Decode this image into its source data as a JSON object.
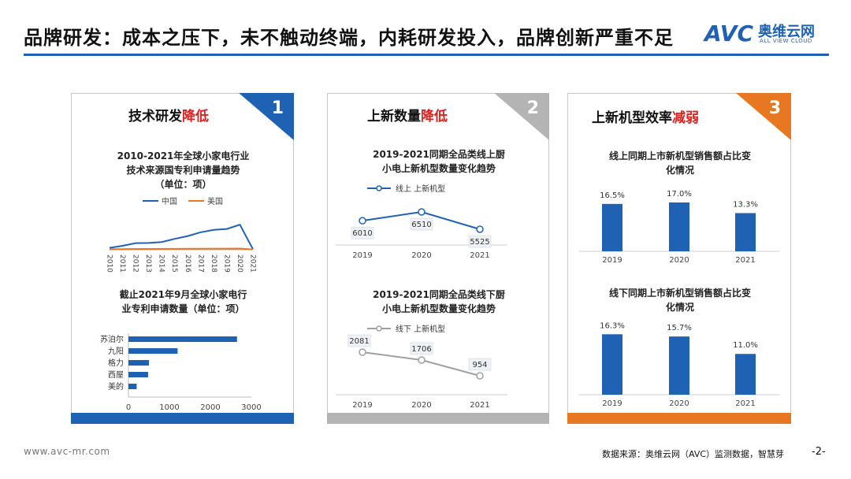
{
  "header": {
    "title": "品牌研发：成本之压下，未不触动终端，内耗研发投入，品牌创新严重不足",
    "logo_cn": "奥维云网",
    "logo_en": "ALL VIEW CLOUD",
    "logo_mark": "AVC"
  },
  "colors": {
    "blue": "#1f62b4",
    "orange": "#e87722",
    "gray": "#b4b4b4",
    "red": "#e0201e"
  },
  "cards": [
    {
      "num": "1",
      "head_a": "技术研发",
      "head_b": "降低",
      "chart1_title": [
        "2010-2021年全球小家电行业",
        "技术来源国专利申请量趋势",
        "（单位：项）"
      ],
      "chart2_title": [
        "截止2021年9月全球小家电行",
        "业专利申请数量（单位：项）"
      ]
    },
    {
      "num": "2",
      "head_a": "上新数量",
      "head_b": "降低",
      "chart1_title": [
        "2019-2021同期全品类线上厨",
        "小电上新机型数量变化趋势"
      ],
      "chart2_title": [
        "2019-2021同期全品类线下厨",
        "小电上新机型数量变化趋势"
      ]
    },
    {
      "num": "3",
      "head_a": "上新机型效率",
      "head_b": "减弱",
      "chart1_title": [
        "线上同期上市新机型销售额占比变",
        "化情况"
      ],
      "chart2_title": [
        "线下同期上市新机型销售额占比变",
        "化情况"
      ]
    }
  ],
  "chart_data": [
    {
      "type": "line",
      "x": [
        "2010",
        "2011",
        "2012",
        "2013",
        "2014",
        "2015",
        "2016",
        "2017",
        "2018",
        "2019",
        "2020",
        "2021"
      ],
      "series": [
        {
          "name": "中国",
          "values": [
            200,
            420,
            700,
            720,
            820,
            1150,
            1450,
            1850,
            2100,
            2200,
            2650,
            60
          ]
        },
        {
          "name": "美国",
          "values": [
            60,
            70,
            80,
            85,
            90,
            95,
            100,
            110,
            115,
            120,
            125,
            30
          ]
        }
      ],
      "ylim": [
        0,
        3500
      ]
    },
    {
      "type": "bar",
      "orientation": "horizontal",
      "categories": [
        "苏泊尔",
        "九阳",
        "格力",
        "西屋",
        "美的"
      ],
      "values": [
        2650,
        1200,
        500,
        480,
        200
      ],
      "xlim": [
        0,
        3000
      ],
      "xticks": [
        "0",
        "1000",
        "2000",
        "3000"
      ]
    },
    {
      "type": "line",
      "x": [
        "2019",
        "2020",
        "2021"
      ],
      "series": [
        {
          "name": "线上 上新机型",
          "values": [
            6010,
            6510,
            5525
          ]
        }
      ],
      "labels": [
        "6010",
        "6510",
        "5525"
      ]
    },
    {
      "type": "line",
      "x": [
        "2019",
        "2020",
        "2021"
      ],
      "series": [
        {
          "name": "线下 上新机型",
          "values": [
            2081,
            1706,
            954
          ]
        }
      ],
      "labels": [
        "2081",
        "1706",
        "954"
      ]
    },
    {
      "type": "bar",
      "categories": [
        "2019",
        "2020",
        "2021"
      ],
      "values": [
        16.5,
        17.0,
        13.3
      ],
      "labels": [
        "16.5%",
        "17.0%",
        "13.3%"
      ]
    },
    {
      "type": "bar",
      "categories": [
        "2019",
        "2020",
        "2021"
      ],
      "values": [
        16.3,
        15.7,
        11.0
      ],
      "labels": [
        "16.3%",
        "15.7%",
        "11.0%"
      ]
    }
  ],
  "footer": {
    "url": "www.avc-mr.com",
    "source": "数据来源：奥维云网（AVC）监测数据，智慧芽",
    "page": "-2-"
  }
}
